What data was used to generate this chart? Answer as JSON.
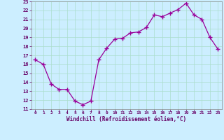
{
  "x": [
    0,
    1,
    2,
    3,
    4,
    5,
    6,
    7,
    8,
    9,
    10,
    11,
    12,
    13,
    14,
    15,
    16,
    17,
    18,
    19,
    20,
    21,
    22,
    23
  ],
  "y": [
    16.5,
    16.0,
    13.8,
    13.2,
    13.2,
    11.9,
    11.5,
    11.9,
    16.5,
    17.8,
    18.8,
    18.9,
    19.5,
    19.6,
    20.1,
    21.5,
    21.3,
    21.7,
    22.1,
    22.8,
    21.5,
    21.0,
    19.0,
    17.7
  ],
  "line_color": "#990099",
  "marker": "+",
  "marker_size": 4,
  "xlim": [
    -0.5,
    23.5
  ],
  "ylim": [
    11,
    23
  ],
  "yticks": [
    11,
    12,
    13,
    14,
    15,
    16,
    17,
    18,
    19,
    20,
    21,
    22,
    23
  ],
  "xticks": [
    0,
    1,
    2,
    3,
    4,
    5,
    6,
    7,
    8,
    9,
    10,
    11,
    12,
    13,
    14,
    15,
    16,
    17,
    18,
    19,
    20,
    21,
    22,
    23
  ],
  "xlabel": "Windchill (Refroidissement éolien,°C)",
  "background_color": "#cceeff",
  "grid_color": "#aaddcc",
  "text_color": "#660066",
  "spine_color": "#888888"
}
